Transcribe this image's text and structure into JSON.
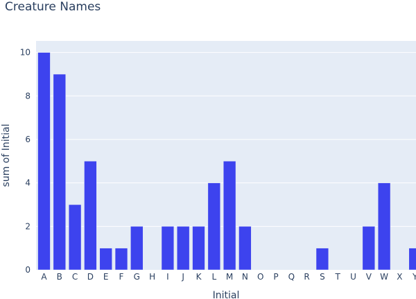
{
  "chart_data": {
    "type": "bar",
    "title": "Creature Names",
    "xlabel": "Initial",
    "ylabel": "sum of Initial",
    "categories": [
      "A",
      "B",
      "C",
      "D",
      "E",
      "F",
      "G",
      "H",
      "I",
      "J",
      "K",
      "L",
      "M",
      "N",
      "O",
      "P",
      "Q",
      "R",
      "S",
      "T",
      "U",
      "V",
      "W",
      "X",
      "Y"
    ],
    "values": [
      10,
      9,
      3,
      5,
      1,
      1,
      2,
      0,
      2,
      2,
      2,
      4,
      5,
      2,
      0,
      0,
      0,
      0,
      1,
      0,
      0,
      2,
      4,
      0,
      1
    ],
    "ylim": [
      0,
      10.53
    ],
    "yticks": [
      0,
      2,
      4,
      6,
      8,
      10
    ],
    "grid": true,
    "legend": "none",
    "colors": {
      "bar": "#3d43ee",
      "plot_bg": "#e5ecf6",
      "grid": "#ffffff",
      "text": "#2a3f5f"
    }
  }
}
